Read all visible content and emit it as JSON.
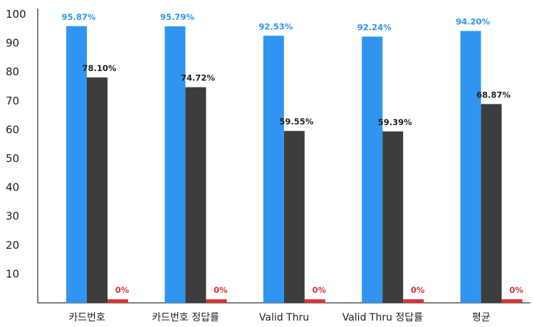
{
  "chart_data": {
    "type": "bar",
    "categories": [
      "카드번호",
      "카드번호 정답률",
      "Valid Thru",
      "Valid Thru 정답률",
      "평균"
    ],
    "series": [
      {
        "values": [
          95.87,
          95.79,
          92.53,
          92.24,
          94.2
        ],
        "labels": [
          "95.87%",
          "95.79%",
          "92.53%",
          "92.24%",
          "94.20%"
        ],
        "color": "#2f95f0",
        "label_color": "#2f95f0"
      },
      {
        "values": [
          78.1,
          74.72,
          59.55,
          59.39,
          68.87
        ],
        "labels": [
          "78.10%",
          "74.72%",
          "59.55%",
          "59.39%",
          "68.87%"
        ],
        "color": "#3d3d3d",
        "label_color": "#222222"
      },
      {
        "values": [
          0,
          0,
          0,
          0,
          0
        ],
        "labels": [
          "0%",
          "0%",
          "0%",
          "0%",
          "0%"
        ],
        "color": "#d93434",
        "label_color": "#d93434"
      }
    ],
    "yticks": [
      10,
      20,
      30,
      40,
      50,
      60,
      70,
      80,
      90,
      100
    ],
    "ylim": [
      0,
      100
    ],
    "grid": false,
    "legend": "none"
  }
}
